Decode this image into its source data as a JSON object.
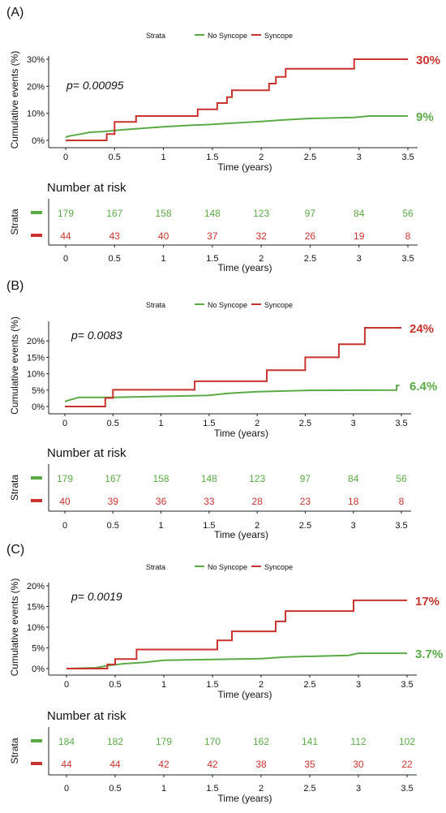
{
  "figure": {
    "colors": {
      "no_syncope": "#5aaa46",
      "syncope": "#c8332e",
      "axis": "#222222",
      "text": "#111111"
    },
    "strata_title": "Strata",
    "strata_names": [
      "No Syncope",
      "Syncope"
    ],
    "y_axis_label": "Cumulative events (%)",
    "x_axis_label": "Time (years)",
    "risk_title": "Number at risk",
    "risk_y_label": "Strata"
  },
  "chart_data": [
    {
      "panel_label": "(A)",
      "type": "line",
      "title": "",
      "pvalue": "p= 0.00095",
      "xlabel": "Time (years)",
      "ylabel": "Cumulative events (%)",
      "xlim": [
        0,
        3.5
      ],
      "ylim": [
        0,
        30
      ],
      "x_ticks": [
        "0",
        "0.5",
        "1",
        "1.5",
        "2",
        "2.5",
        "3",
        "3.5"
      ],
      "x_tick_values": [
        0,
        0.5,
        1,
        1.5,
        2,
        2.5,
        3,
        3.5
      ],
      "y_ticks": [
        "0%",
        "10%",
        "20%",
        "30%"
      ],
      "y_tick_values": [
        0,
        10,
        20,
        30
      ],
      "legend": {
        "title": "Strata",
        "position": "top"
      },
      "series": [
        {
          "name": "No Syncope",
          "color": "#5aaa46",
          "end_label": "9%",
          "points": [
            [
              0,
              1.2
            ],
            [
              0.05,
              1.7
            ],
            [
              0.15,
              2.3
            ],
            [
              0.25,
              3.0
            ],
            [
              0.4,
              3.3
            ],
            [
              0.55,
              3.8
            ],
            [
              0.8,
              4.5
            ],
            [
              1.0,
              5.0
            ],
            [
              1.3,
              5.6
            ],
            [
              1.5,
              5.9
            ],
            [
              1.7,
              6.4
            ],
            [
              2.0,
              7.0
            ],
            [
              2.2,
              7.5
            ],
            [
              2.5,
              8.1
            ],
            [
              2.95,
              8.5
            ],
            [
              3.1,
              9.0
            ],
            [
              3.5,
              9.0
            ]
          ]
        },
        {
          "name": "Syncope",
          "color": "#c8332e",
          "end_label": "30%",
          "points": [
            [
              0,
              0
            ],
            [
              0.42,
              0
            ],
            [
              0.42,
              2.3
            ],
            [
              0.5,
              2.3
            ],
            [
              0.5,
              6.8
            ],
            [
              0.72,
              6.8
            ],
            [
              0.72,
              9.0
            ],
            [
              1.35,
              9.0
            ],
            [
              1.35,
              11.5
            ],
            [
              1.55,
              11.5
            ],
            [
              1.55,
              13.8
            ],
            [
              1.65,
              13.8
            ],
            [
              1.65,
              16.0
            ],
            [
              1.7,
              16.0
            ],
            [
              1.7,
              18.5
            ],
            [
              2.08,
              18.5
            ],
            [
              2.08,
              21.0
            ],
            [
              2.15,
              21.0
            ],
            [
              2.15,
              23.5
            ],
            [
              2.25,
              23.5
            ],
            [
              2.25,
              26.5
            ],
            [
              2.95,
              26.5
            ],
            [
              2.95,
              30.0
            ],
            [
              3.5,
              30.0
            ]
          ]
        }
      ],
      "risk_table": {
        "title": "Number at risk",
        "times": [
          "0",
          "0.5",
          "1",
          "1.5",
          "2",
          "2.5",
          "3",
          "3.5"
        ],
        "rows": [
          {
            "name": "No Syncope",
            "color": "#5aaa46",
            "values": [
              "179",
              "167",
              "158",
              "148",
              "123",
              "97",
              "84",
              "56"
            ]
          },
          {
            "name": "Syncope",
            "color": "#c8332e",
            "values": [
              "44",
              "43",
              "40",
              "37",
              "32",
              "26",
              "19",
              "8"
            ]
          }
        ]
      }
    },
    {
      "panel_label": "(B)",
      "type": "line",
      "title": "",
      "pvalue": "p= 0.0083",
      "xlabel": "Time (years)",
      "ylabel": "Cumulative events (%)",
      "xlim": [
        0,
        3.5
      ],
      "ylim": [
        0,
        25
      ],
      "x_ticks": [
        "0",
        "0.5",
        "1",
        "1.5",
        "2",
        "2.5",
        "3",
        "3.5"
      ],
      "x_tick_values": [
        0,
        0.5,
        1,
        1.5,
        2,
        2.5,
        3,
        3.5
      ],
      "y_ticks": [
        "0%",
        "5%",
        "10%",
        "15%",
        "20%"
      ],
      "y_tick_values": [
        0,
        5,
        10,
        15,
        20
      ],
      "legend": {
        "title": "Strata",
        "position": "top"
      },
      "series": [
        {
          "name": "No Syncope",
          "color": "#5aaa46",
          "end_label": "6.4%",
          "points": [
            [
              0,
              1.5
            ],
            [
              0.05,
              2.0
            ],
            [
              0.1,
              2.4
            ],
            [
              0.15,
              2.8
            ],
            [
              0.5,
              2.8
            ],
            [
              1.5,
              3.4
            ],
            [
              1.7,
              4.0
            ],
            [
              2.0,
              4.5
            ],
            [
              2.5,
              4.9
            ],
            [
              3.45,
              5.0
            ],
            [
              3.45,
              6.4
            ],
            [
              3.48,
              6.4
            ]
          ]
        },
        {
          "name": "Syncope",
          "color": "#c8332e",
          "end_label": "24%",
          "points": [
            [
              0,
              0
            ],
            [
              0.42,
              0
            ],
            [
              0.42,
              2.6
            ],
            [
              0.5,
              2.6
            ],
            [
              0.5,
              5.1
            ],
            [
              1.35,
              5.1
            ],
            [
              1.35,
              7.7
            ],
            [
              2.1,
              7.7
            ],
            [
              2.1,
              11.1
            ],
            [
              2.5,
              11.1
            ],
            [
              2.5,
              15.0
            ],
            [
              2.85,
              15.0
            ],
            [
              2.85,
              19.0
            ],
            [
              3.12,
              19.0
            ],
            [
              3.12,
              24.0
            ],
            [
              3.5,
              24.0
            ]
          ]
        }
      ],
      "risk_table": {
        "title": "Number at risk",
        "times": [
          "0",
          "0.5",
          "1",
          "1.5",
          "2",
          "2.5",
          "3",
          "3.5"
        ],
        "rows": [
          {
            "name": "No Syncope",
            "color": "#5aaa46",
            "values": [
              "179",
              "167",
              "158",
              "148",
              "123",
              "97",
              "84",
              "56"
            ]
          },
          {
            "name": "Syncope",
            "color": "#c8332e",
            "values": [
              "40",
              "39",
              "36",
              "33",
              "28",
              "23",
              "18",
              "8"
            ]
          }
        ]
      }
    },
    {
      "panel_label": "(C)",
      "type": "line",
      "title": "",
      "pvalue": "p= 0.0019",
      "xlabel": "Time (years)",
      "ylabel": "Cumulative events (%)",
      "xlim": [
        0,
        3.5
      ],
      "ylim": [
        0,
        20
      ],
      "x_ticks": [
        "0",
        "0.5",
        "1",
        "1.5",
        "2",
        "2.5",
        "3",
        "3.5"
      ],
      "x_tick_values": [
        0,
        0.5,
        1,
        1.5,
        2,
        2.5,
        3,
        3.5
      ],
      "y_ticks": [
        "0%",
        "5%",
        "10%",
        "15%",
        "20%"
      ],
      "y_tick_values": [
        0,
        5,
        10,
        15,
        20
      ],
      "legend": {
        "title": "Strata",
        "position": "top"
      },
      "series": [
        {
          "name": "No Syncope",
          "color": "#5aaa46",
          "end_label": "3.7%",
          "points": [
            [
              0,
              0
            ],
            [
              0.3,
              0.2
            ],
            [
              0.45,
              0.8
            ],
            [
              0.6,
              1.2
            ],
            [
              0.8,
              1.5
            ],
            [
              1.0,
              2.0
            ],
            [
              1.5,
              2.2
            ],
            [
              2.0,
              2.4
            ],
            [
              2.25,
              2.8
            ],
            [
              2.9,
              3.2
            ],
            [
              3.0,
              3.7
            ],
            [
              3.5,
              3.7
            ]
          ]
        },
        {
          "name": "Syncope",
          "color": "#c8332e",
          "end_label": "17%",
          "points": [
            [
              0,
              0
            ],
            [
              0.42,
              0
            ],
            [
              0.42,
              1.0
            ],
            [
              0.5,
              1.0
            ],
            [
              0.5,
              2.3
            ],
            [
              0.72,
              2.3
            ],
            [
              0.72,
              4.6
            ],
            [
              1.55,
              4.6
            ],
            [
              1.55,
              6.8
            ],
            [
              1.7,
              6.8
            ],
            [
              1.7,
              9.0
            ],
            [
              2.15,
              9.0
            ],
            [
              2.15,
              11.4
            ],
            [
              2.25,
              11.4
            ],
            [
              2.25,
              13.9
            ],
            [
              2.95,
              13.9
            ],
            [
              2.95,
              16.5
            ],
            [
              3.5,
              16.5
            ]
          ]
        }
      ],
      "risk_table": {
        "title": "Number at risk",
        "times": [
          "0",
          "0.5",
          "1",
          "1.5",
          "2",
          "2.5",
          "3",
          "3.5"
        ],
        "rows": [
          {
            "name": "No Syncope",
            "color": "#5aaa46",
            "values": [
              "184",
              "182",
              "179",
              "170",
              "162",
              "141",
              "112",
              "102"
            ]
          },
          {
            "name": "Syncope",
            "color": "#c8332e",
            "values": [
              "44",
              "44",
              "42",
              "42",
              "38",
              "35",
              "30",
              "22"
            ]
          }
        ]
      }
    }
  ]
}
